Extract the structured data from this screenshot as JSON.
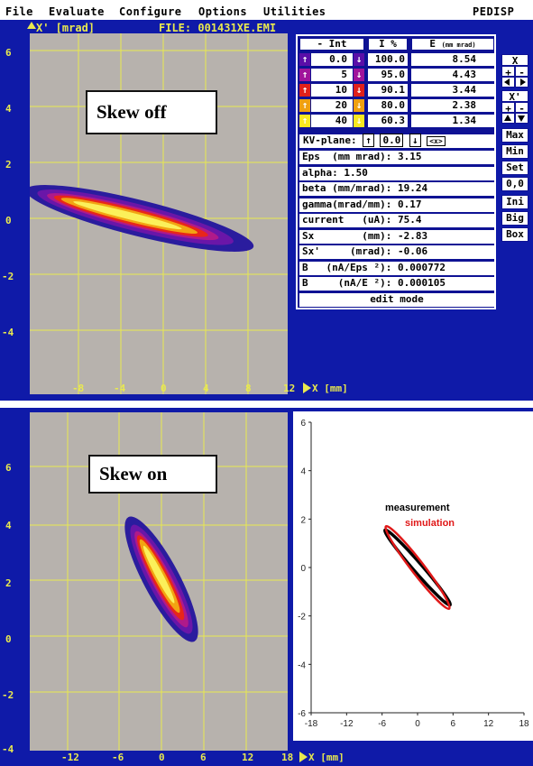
{
  "menu": {
    "items": [
      "File",
      "Evaluate",
      "Configure",
      "Options",
      "Utilities"
    ],
    "app_name": "PEDISP"
  },
  "top": {
    "y_axis_label": "X' [mrad]",
    "file_label": "FILE: 001431XE.EMI",
    "x_axis_label": "X [mm]",
    "y_ticks": [
      "6",
      "4",
      "2",
      "0",
      "-2",
      "-4"
    ],
    "x_ticks": [
      "-8",
      "-4",
      "0",
      "4",
      "8",
      "12"
    ],
    "skew_label": "Skew off"
  },
  "table": {
    "headers": {
      "int": "- Int",
      "i_pct": "I %",
      "e": "E",
      "e_unit": "(mm mrad)"
    },
    "rows": [
      {
        "int": "0.0",
        "i": "100.0",
        "e": "8.54"
      },
      {
        "int": "5",
        "i": "95.0",
        "e": "4.43"
      },
      {
        "int": "10",
        "i": "90.1",
        "e": "3.44"
      },
      {
        "int": "20",
        "i": "80.0",
        "e": "2.38"
      },
      {
        "int": "40",
        "i": "60.3",
        "e": "1.34"
      }
    ],
    "kv_plane_label": "KV-plane:",
    "kv_plane_value": "0.0",
    "kv_plane_extra": "<x>",
    "params": [
      {
        "label": "Eps  (mm mrad)",
        "value": "3.15"
      },
      {
        "label": "alpha",
        "value": "1.50"
      },
      {
        "label": "beta (mm/mrad)",
        "value": "19.24"
      },
      {
        "label": "gamma(mrad/mm)",
        "value": "0.17"
      },
      {
        "label": "current   (uA)",
        "value": "75.4"
      },
      {
        "label": "Sx        (mm)",
        "value": "-2.83"
      },
      {
        "label": "Sx'     (mrad)",
        "value": "-0.06"
      },
      {
        "label": "B   (nA/Eps ²)",
        "value": "0.000772"
      },
      {
        "label": "B     (nA/E ²)",
        "value": "0.000105"
      }
    ],
    "mode": "edit mode",
    "row_colors": [
      "#5a0ea8",
      "#a0149b",
      "#e0201a",
      "#f0a010",
      "#f8e820"
    ]
  },
  "side_buttons": {
    "x_label": "X",
    "x_plus": "+",
    "x_minus": "-",
    "xp_label": "X'",
    "xp_plus": "+",
    "xp_minus": "-",
    "max": "Max",
    "min": "Min",
    "set": "Set",
    "zero": "0,0",
    "ini": "Ini",
    "big": "Big",
    "box": "Box"
  },
  "bottom": {
    "y_ticks": [
      "6",
      "4",
      "2",
      "0",
      "-2",
      "-4"
    ],
    "x_ticks": [
      "-12",
      "-6",
      "0",
      "6",
      "12",
      "18"
    ],
    "x_axis_label": "X [mm]",
    "skew_label": "Skew on"
  },
  "chart_data": {
    "type": "line",
    "title": "",
    "xlabel": "",
    "ylabel": "",
    "xlim": [
      -18,
      18
    ],
    "ylim": [
      -6,
      6
    ],
    "x_ticks": [
      -18,
      -12,
      -6,
      0,
      6,
      12,
      18
    ],
    "y_ticks": [
      6,
      4,
      2,
      0,
      -2,
      -4,
      -6
    ],
    "grid": false,
    "legend_position": "upper-left",
    "series": [
      {
        "name": "measurement",
        "color": "#000000",
        "shape": "ellipse",
        "center": [
          0,
          0
        ],
        "extent": {
          "x": [
            -5.5,
            5.5
          ],
          "y": [
            -1.6,
            1.5
          ]
        }
      },
      {
        "name": "simulation",
        "color": "#e01818",
        "shape": "ellipse",
        "center": [
          0,
          0
        ],
        "extent": {
          "x": [
            -5.5,
            5.2
          ],
          "y": [
            -1.7,
            1.7
          ]
        }
      }
    ]
  }
}
